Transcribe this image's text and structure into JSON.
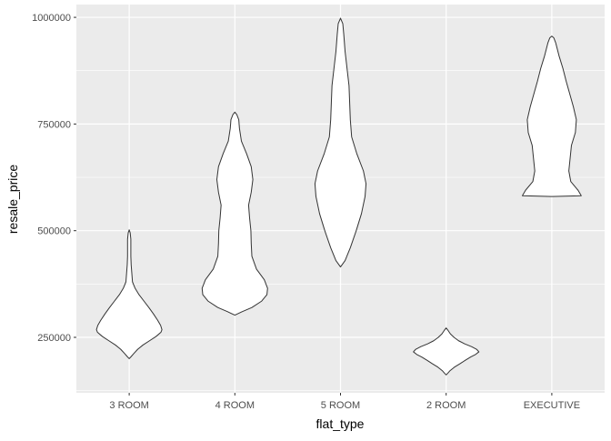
{
  "chart_data": {
    "type": "violin",
    "title": "",
    "xlabel": "flat_type",
    "ylabel": "resale_price",
    "categories": [
      "3 ROOM",
      "4 ROOM",
      "5 ROOM",
      "2 ROOM",
      "EXECUTIVE"
    ],
    "ylim": [
      120000,
      1030000
    ],
    "yticks": [
      250000,
      500000,
      750000,
      1000000
    ],
    "ytick_labels": [
      "250000",
      "500000",
      "750000",
      "1000000"
    ],
    "grid": true,
    "panel_background": "#ebebeb",
    "gridline_color": "#ffffff",
    "violin_fill": "#ffffff",
    "violin_outline": "#333333",
    "violins": [
      {
        "category": "3 ROOM",
        "profile": [
          [
            200000,
            0.0
          ],
          [
            205000,
            0.06
          ],
          [
            212000,
            0.14
          ],
          [
            222000,
            0.26
          ],
          [
            232000,
            0.42
          ],
          [
            242000,
            0.62
          ],
          [
            252000,
            0.82
          ],
          [
            262000,
            0.97
          ],
          [
            268000,
            1.0
          ],
          [
            278000,
            0.96
          ],
          [
            290000,
            0.87
          ],
          [
            305000,
            0.74
          ],
          [
            320000,
            0.6
          ],
          [
            335000,
            0.45
          ],
          [
            350000,
            0.3
          ],
          [
            365000,
            0.18
          ],
          [
            380000,
            0.1
          ],
          [
            400000,
            0.08
          ],
          [
            420000,
            0.06
          ],
          [
            440000,
            0.05
          ],
          [
            460000,
            0.05
          ],
          [
            480000,
            0.05
          ],
          [
            495000,
            0.03
          ],
          [
            502000,
            0.0
          ]
        ]
      },
      {
        "category": "4 ROOM",
        "profile": [
          [
            302000,
            0.0
          ],
          [
            310000,
            0.22
          ],
          [
            320000,
            0.52
          ],
          [
            335000,
            0.82
          ],
          [
            350000,
            0.98
          ],
          [
            365000,
            1.0
          ],
          [
            385000,
            0.9
          ],
          [
            410000,
            0.66
          ],
          [
            440000,
            0.52
          ],
          [
            470000,
            0.5
          ],
          [
            500000,
            0.49
          ],
          [
            530000,
            0.45
          ],
          [
            560000,
            0.42
          ],
          [
            590000,
            0.5
          ],
          [
            620000,
            0.55
          ],
          [
            650000,
            0.5
          ],
          [
            680000,
            0.36
          ],
          [
            710000,
            0.2
          ],
          [
            740000,
            0.14
          ],
          [
            760000,
            0.12
          ],
          [
            772000,
            0.06
          ],
          [
            778000,
            0.0
          ]
        ]
      },
      {
        "category": "5 ROOM",
        "profile": [
          [
            415000,
            0.0
          ],
          [
            430000,
            0.14
          ],
          [
            460000,
            0.3
          ],
          [
            500000,
            0.48
          ],
          [
            540000,
            0.64
          ],
          [
            580000,
            0.75
          ],
          [
            610000,
            0.78
          ],
          [
            640000,
            0.7
          ],
          [
            680000,
            0.5
          ],
          [
            720000,
            0.34
          ],
          [
            760000,
            0.3
          ],
          [
            800000,
            0.28
          ],
          [
            840000,
            0.26
          ],
          [
            880000,
            0.2
          ],
          [
            920000,
            0.14
          ],
          [
            960000,
            0.1
          ],
          [
            985000,
            0.07
          ],
          [
            998000,
            0.0
          ]
        ]
      },
      {
        "category": "2 ROOM",
        "profile": [
          [
            162000,
            0.0
          ],
          [
            166000,
            0.05
          ],
          [
            172000,
            0.12
          ],
          [
            180000,
            0.25
          ],
          [
            188000,
            0.42
          ],
          [
            196000,
            0.58
          ],
          [
            204000,
            0.75
          ],
          [
            210000,
            0.9
          ],
          [
            216000,
            1.0
          ],
          [
            222000,
            0.93
          ],
          [
            228000,
            0.78
          ],
          [
            235000,
            0.56
          ],
          [
            242000,
            0.38
          ],
          [
            250000,
            0.24
          ],
          [
            258000,
            0.13
          ],
          [
            266000,
            0.06
          ],
          [
            272000,
            0.0
          ]
        ]
      },
      {
        "category": "EXECUTIVE",
        "profile": [
          [
            580000,
            0.0
          ],
          [
            582000,
            0.9
          ],
          [
            595000,
            0.8
          ],
          [
            615000,
            0.58
          ],
          [
            640000,
            0.52
          ],
          [
            670000,
            0.56
          ],
          [
            700000,
            0.6
          ],
          [
            730000,
            0.72
          ],
          [
            760000,
            0.75
          ],
          [
            790000,
            0.66
          ],
          [
            820000,
            0.55
          ],
          [
            850000,
            0.44
          ],
          [
            880000,
            0.34
          ],
          [
            910000,
            0.22
          ],
          [
            940000,
            0.12
          ],
          [
            952000,
            0.06
          ],
          [
            956000,
            0.0
          ]
        ]
      }
    ]
  }
}
